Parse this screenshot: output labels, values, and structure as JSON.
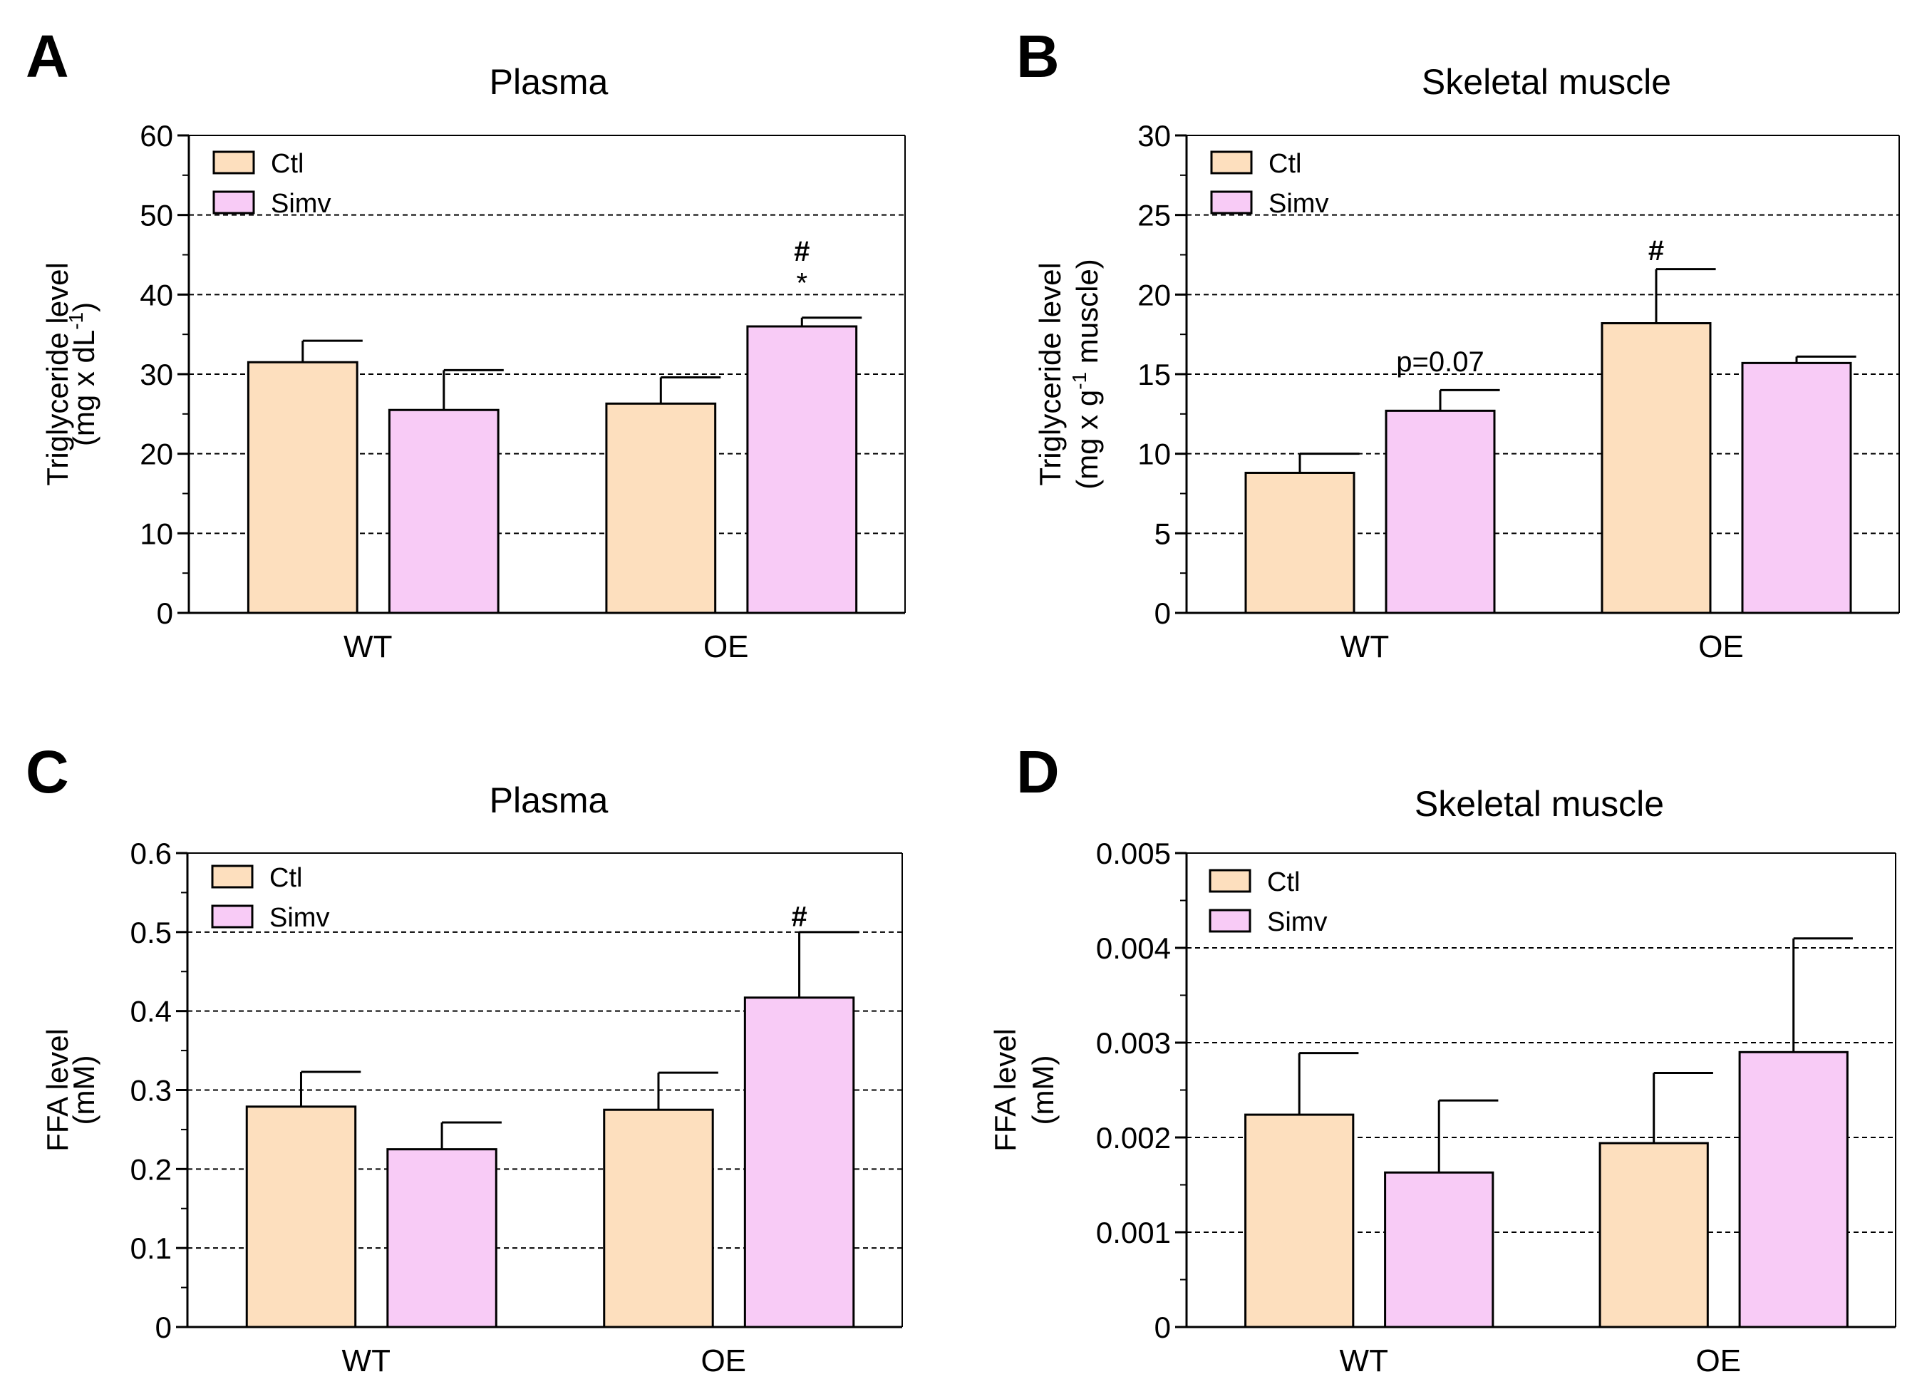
{
  "colors": {
    "Ctl": "#FDDFBE",
    "Simv": "#F8CBF6",
    "outline": "#000000",
    "grid": "#000000"
  },
  "chart_data": [
    {
      "id": "A",
      "type": "bar",
      "panel_letter": "A",
      "title": "Plasma",
      "ylabel": [
        "Triglyceride level",
        "(mg x dL-1)"
      ],
      "ylabel_parts": {
        "line1": "Triglyceride level",
        "pre": "(mg x dL",
        "sup": "-1",
        "post": ")"
      },
      "categories": [
        "WT",
        "OE"
      ],
      "ylim": [
        0,
        60
      ],
      "yticks": [
        0,
        10,
        20,
        30,
        40,
        50,
        60
      ],
      "ytick_labels": [
        "0",
        "10",
        "20",
        "30",
        "40",
        "50",
        "60"
      ],
      "gridlines": [
        10,
        20,
        30,
        40,
        50
      ],
      "legend": [
        "Ctl",
        "Simv"
      ],
      "series": [
        {
          "name": "Ctl",
          "values": [
            31.5,
            26.3
          ],
          "errors": [
            2.7,
            3.3
          ]
        },
        {
          "name": "Simv",
          "values": [
            25.5,
            36.0
          ],
          "errors": [
            5.0,
            1.1
          ]
        }
      ],
      "annotations": [
        {
          "text": "*",
          "category": "OE",
          "series": "Simv",
          "y": 41.5,
          "bold": false
        },
        {
          "text": "#",
          "category": "OE",
          "series": "Simv",
          "y": 45.5,
          "bold": true
        }
      ]
    },
    {
      "id": "B",
      "type": "bar",
      "panel_letter": "B",
      "title": "Skeletal muscle",
      "ylabel": [
        "Triglyceride level",
        "(mg x g-1 muscle)"
      ],
      "ylabel_parts": {
        "line1": "Triglyceride level",
        "pre": "(mg x g",
        "sup": "-1",
        "post": " muscle)"
      },
      "categories": [
        "WT",
        "OE"
      ],
      "ylim": [
        0,
        30
      ],
      "yticks": [
        0,
        5,
        10,
        15,
        20,
        25,
        30
      ],
      "ytick_labels": [
        "0",
        "5",
        "10",
        "15",
        "20",
        "25",
        "30"
      ],
      "gridlines": [
        5,
        10,
        15,
        20,
        25
      ],
      "legend": [
        "Ctl",
        "Simv"
      ],
      "series": [
        {
          "name": "Ctl",
          "values": [
            8.8,
            18.2
          ],
          "errors": [
            1.2,
            3.4
          ]
        },
        {
          "name": "Simv",
          "values": [
            12.7,
            15.7
          ],
          "errors": [
            1.3,
            0.4
          ]
        }
      ],
      "annotations": [
        {
          "text": "p=0.07",
          "category": "WT",
          "series": "Simv",
          "y": 15.8,
          "bold": false
        },
        {
          "text": "#",
          "category": "OE",
          "series": "Ctl",
          "y": 22.8,
          "bold": true
        }
      ]
    },
    {
      "id": "C",
      "type": "bar",
      "panel_letter": "C",
      "title": "Plasma",
      "ylabel": [
        "FFA level",
        "(mM)"
      ],
      "ylabel_parts": {
        "line1": "FFA level",
        "pre": "(mM)",
        "sup": "",
        "post": ""
      },
      "categories": [
        "WT",
        "OE"
      ],
      "ylim": [
        0,
        0.6
      ],
      "yticks": [
        0,
        0.1,
        0.2,
        0.3,
        0.4,
        0.5,
        0.6
      ],
      "ytick_labels": [
        "0",
        "0.1",
        "0.2",
        "0.3",
        "0.4",
        "0.5",
        "0.6"
      ],
      "gridlines": [
        0.1,
        0.2,
        0.3,
        0.4,
        0.5
      ],
      "legend": [
        "Ctl",
        "Simv"
      ],
      "series": [
        {
          "name": "Ctl",
          "values": [
            0.279,
            0.275
          ],
          "errors": [
            0.044,
            0.047
          ]
        },
        {
          "name": "Simv",
          "values": [
            0.225,
            0.417
          ],
          "errors": [
            0.034,
            0.083
          ]
        }
      ],
      "annotations": [
        {
          "text": "#",
          "category": "OE",
          "series": "Simv",
          "y": 0.52,
          "bold": true
        }
      ]
    },
    {
      "id": "D",
      "type": "bar",
      "panel_letter": "D",
      "title": "Skeletal muscle",
      "ylabel": [
        "FFA level",
        "(mM)"
      ],
      "ylabel_parts": {
        "line1": "FFA level",
        "pre": "(mM)",
        "sup": "",
        "post": ""
      },
      "categories": [
        "WT",
        "OE"
      ],
      "ylim": [
        0,
        0.005
      ],
      "yticks": [
        0,
        0.001,
        0.002,
        0.003,
        0.004,
        0.005
      ],
      "ytick_labels": [
        "0",
        "0.001",
        "0.002",
        "0.003",
        "0.004",
        "0.005"
      ],
      "gridlines": [
        0.001,
        0.002,
        0.003,
        0.004
      ],
      "legend": [
        "Ctl",
        "Simv"
      ],
      "series": [
        {
          "name": "Ctl",
          "values": [
            0.00224,
            0.00194
          ],
          "errors": [
            0.00065,
            0.00074
          ]
        },
        {
          "name": "Simv",
          "values": [
            0.00163,
            0.0029
          ],
          "errors": [
            0.00076,
            0.0012
          ]
        }
      ],
      "annotations": []
    }
  ]
}
